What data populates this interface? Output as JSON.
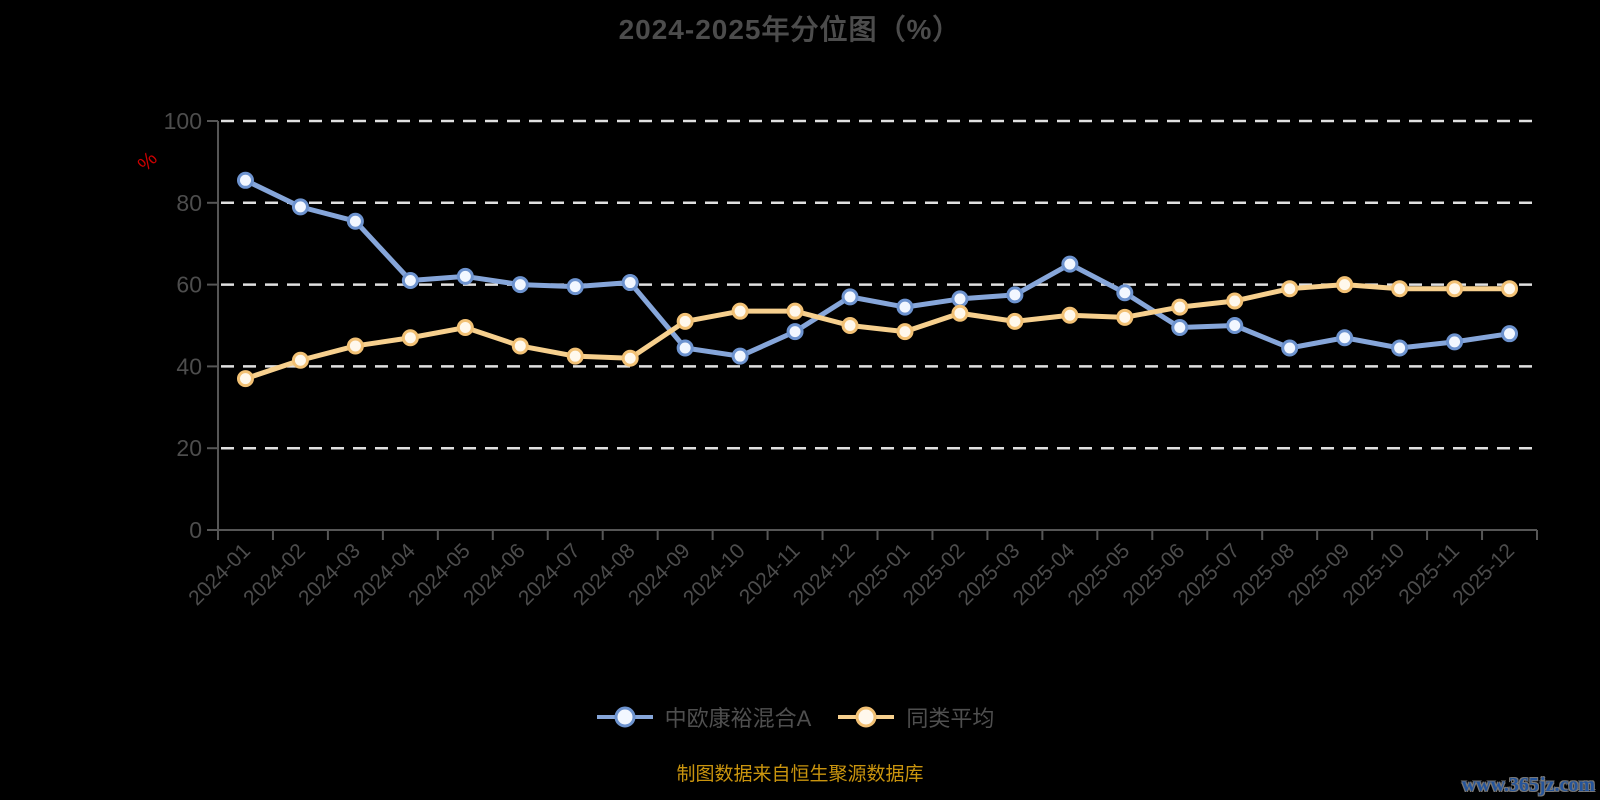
{
  "title": "2024-2025年分位图（%）",
  "y_axis": {
    "unit_label": "%",
    "unit_color": "#cc0000",
    "ticks": [
      0,
      20,
      40,
      60,
      80,
      100
    ]
  },
  "legend": {
    "items": [
      {
        "label": "中欧康裕混合A",
        "color": "#86a6da",
        "border": "#6d93cf",
        "fill": "#f2f7ff"
      },
      {
        "label": "同类平均",
        "color": "#f7d08e",
        "border": "#f2c175",
        "fill": "#fff8ec"
      }
    ]
  },
  "footer": {
    "source_text": "制图数据来自恒生聚源数据库",
    "watermark": "www.365jz.com"
  },
  "colors": {
    "background": "#000000",
    "title": "#4c4c4c",
    "axis": "#565656",
    "tick_label": "#4d4d4d",
    "gridline": "#e0e0e0",
    "unit_label": "#cc0000",
    "legend_text": "#4f4f4f",
    "source_text": "#c9940e",
    "watermark": "#24549b"
  },
  "chart_data": {
    "type": "line",
    "title": "2024-2025年分位图（%）",
    "xlabel": "",
    "ylabel": "%",
    "ylim": [
      0,
      100
    ],
    "grid": true,
    "legend_position": "bottom",
    "categories": [
      "2024-01",
      "2024-02",
      "2024-03",
      "2024-04",
      "2024-05",
      "2024-06",
      "2024-07",
      "2024-08",
      "2024-09",
      "2024-10",
      "2024-11",
      "2024-12",
      "2025-01",
      "2025-02",
      "2025-03",
      "2025-04",
      "2025-05",
      "2025-06",
      "2025-07",
      "2025-08",
      "2025-09",
      "2025-10",
      "2025-11",
      "2025-12"
    ],
    "series": [
      {
        "name": "中欧康裕混合A",
        "color": "#86a6da",
        "marker_border": "#6d93cf",
        "marker_fill": "#f2f7ff",
        "values": [
          85.5,
          79,
          75.5,
          61,
          62,
          60,
          59.5,
          60.5,
          44.5,
          42.5,
          48.5,
          57,
          54.5,
          56.5,
          57.5,
          65,
          58,
          49.5,
          50,
          44.5,
          47,
          44.5,
          46,
          48
        ]
      },
      {
        "name": "同类平均",
        "color": "#f7d08e",
        "marker_border": "#f2c175",
        "marker_fill": "#fff8ec",
        "values": [
          37,
          41.5,
          45,
          47,
          49.5,
          45,
          42.5,
          42,
          51,
          53.5,
          53.5,
          50,
          48.5,
          53,
          51,
          52.5,
          52,
          54.5,
          56,
          59,
          60,
          59,
          59,
          59
        ]
      }
    ]
  }
}
